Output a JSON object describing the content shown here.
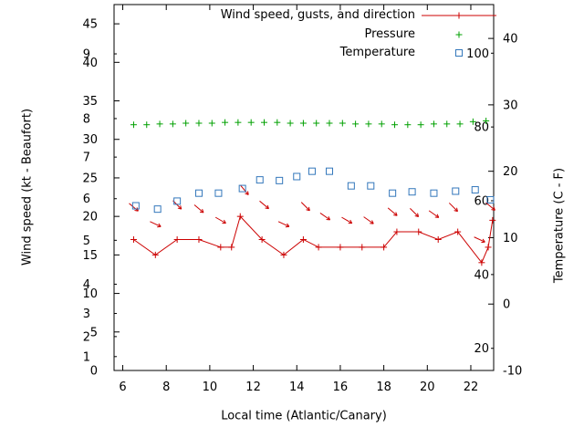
{
  "legend": {
    "items": [
      {
        "label": "Wind speed, gusts, and direction",
        "marker": "red-line-with-plus",
        "color": "#cc0000"
      },
      {
        "label": "Pressure",
        "marker": "green-plus",
        "color": "#00a000"
      },
      {
        "label": "Temperature",
        "marker": "blue-open-square",
        "color": "#3377bb"
      }
    ]
  },
  "chart_data": {
    "type": "line",
    "xlabel": "Local time (Atlantic/Canary)",
    "ylabel_left": "Wind speed (kt - Beaufort)",
    "ylabel_right": "Temperature (C - F)",
    "x_axis": {
      "min": 5.6,
      "max": 23.05,
      "ticks": [
        6,
        8,
        10,
        12,
        14,
        16,
        18,
        20,
        22
      ]
    },
    "y_left_axis": {
      "min": 0,
      "max": 47.5,
      "ticks": [
        0,
        5,
        10,
        15,
        20,
        25,
        30,
        35,
        40,
        45
      ],
      "beaufort_ticks": [
        {
          "label": "1",
          "kt": 1.8
        },
        {
          "label": "2",
          "kt": 4.4
        },
        {
          "label": "3",
          "kt": 7.4
        },
        {
          "label": "4",
          "kt": 11.2
        },
        {
          "label": "5",
          "kt": 16.9
        },
        {
          "label": "6",
          "kt": 22.3
        },
        {
          "label": "7",
          "kt": 27.7
        },
        {
          "label": "8",
          "kt": 32.7
        },
        {
          "label": "9",
          "kt": 41.1
        }
      ]
    },
    "y_right_axis": {
      "min": -10,
      "max": 45.1,
      "ticks": [
        40,
        30,
        20,
        10,
        0,
        -10
      ],
      "fahrenheit_ticks": [
        100,
        80,
        60,
        40,
        20
      ]
    },
    "series": [
      {
        "name": "wind_speed",
        "unit": "kt",
        "axis": "left",
        "style": "line-plus",
        "color": "#cc0000",
        "x": [
          6.5,
          7.5,
          8.5,
          9.5,
          10.5,
          11.0,
          11.4,
          12.4,
          13.4,
          14.3,
          15.0,
          16.0,
          17.0,
          18.0,
          18.6,
          19.6,
          20.5,
          21.4,
          22.5,
          22.8,
          23.0
        ],
        "kt": [
          17,
          15,
          17,
          17,
          16,
          16,
          20,
          17,
          15,
          17,
          16,
          16,
          16,
          16,
          18,
          18,
          17,
          18,
          14,
          16,
          19.5
        ]
      },
      {
        "name": "wind_gusts_direction",
        "unit": "kt",
        "axis": "left",
        "style": "arrow",
        "color": "#cc0000",
        "x": [
          6.5,
          7.5,
          8.5,
          9.5,
          10.5,
          11.6,
          12.5,
          13.4,
          14.4,
          15.3,
          16.3,
          17.3,
          18.4,
          19.4,
          20.3,
          21.2,
          22.4,
          22.9
        ],
        "kt": [
          21.2,
          19.0,
          21.5,
          21.0,
          19.5,
          23.4,
          21.5,
          19.0,
          21.3,
          20.0,
          19.5,
          19.5,
          20.6,
          20.5,
          20.3,
          21.2,
          17.0,
          21.3
        ],
        "angle_deg": [
          -40,
          -25,
          -45,
          -40,
          -30,
          -50,
          -40,
          -25,
          -45,
          -35,
          -30,
          -35,
          -40,
          -45,
          -35,
          -45,
          -25,
          -40
        ]
      },
      {
        "name": "pressure",
        "axis": "left",
        "style": "plus",
        "color": "#00a000",
        "x": [
          6.5,
          7.1,
          7.7,
          8.3,
          8.9,
          9.5,
          10.1,
          10.7,
          11.3,
          11.9,
          12.5,
          13.1,
          13.7,
          14.3,
          14.9,
          15.5,
          16.1,
          16.7,
          17.3,
          17.9,
          18.5,
          19.1,
          19.7,
          20.3,
          20.9,
          21.5,
          22.1,
          22.7
        ],
        "kt_scale_level": [
          31.9,
          31.9,
          32.0,
          32.0,
          32.1,
          32.1,
          32.1,
          32.2,
          32.2,
          32.2,
          32.2,
          32.2,
          32.1,
          32.1,
          32.1,
          32.1,
          32.1,
          32.0,
          32.0,
          32.0,
          31.9,
          31.9,
          31.9,
          32.0,
          32.0,
          32.0,
          32.3,
          32.4
        ]
      },
      {
        "name": "temperature",
        "unit": "C",
        "axis": "right",
        "style": "open-square",
        "color": "#3377bb",
        "x": [
          6.6,
          7.6,
          8.5,
          9.5,
          10.4,
          11.5,
          12.3,
          13.2,
          14.0,
          14.7,
          15.5,
          16.5,
          17.4,
          18.4,
          19.3,
          20.3,
          21.3,
          22.2,
          22.9
        ],
        "c": [
          14.8,
          14.3,
          15.5,
          16.7,
          16.7,
          17.4,
          18.7,
          18.6,
          19.2,
          20.0,
          20.0,
          17.8,
          17.8,
          16.7,
          16.9,
          16.7,
          17.0,
          17.2,
          15.7
        ]
      }
    ]
  }
}
